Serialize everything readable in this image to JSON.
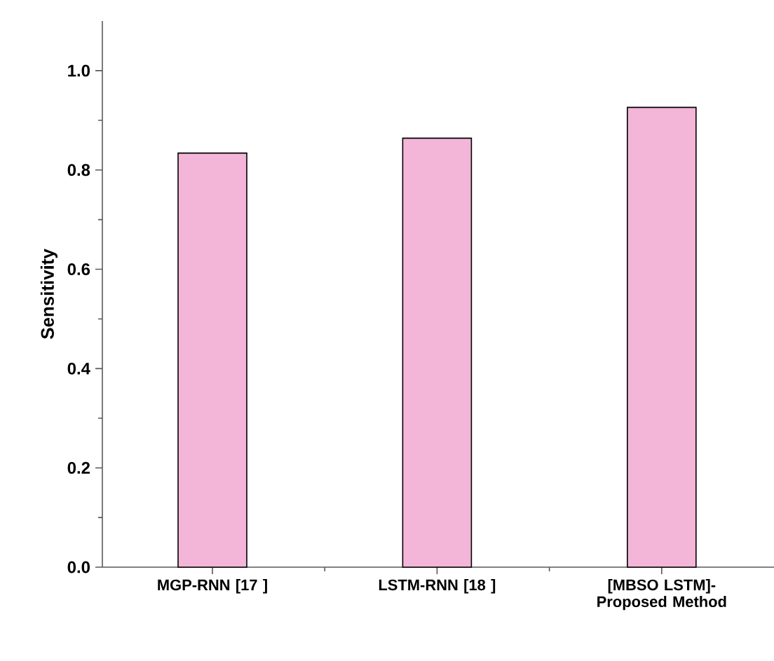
{
  "chart_data": {
    "type": "bar",
    "ylabel": "Sensitivity",
    "categories": [
      "MGP-RNN [17 ]",
      "LSTM-RNN [18 ]",
      "[MBSO LSTM]-Proposed Method"
    ],
    "values": [
      0.834,
      0.864,
      0.926
    ],
    "color": "#f3b6d8",
    "ylim": [
      0,
      1.1
    ],
    "yticks": [
      {
        "value": 0,
        "label": "0.0"
      },
      {
        "value": 0.2,
        "label": "0.2"
      },
      {
        "value": 0.4,
        "label": "0.4"
      },
      {
        "value": 0.6,
        "label": "0.6"
      },
      {
        "value": 0.8,
        "label": "0.8"
      },
      {
        "value": 1.0,
        "label": "1.0"
      }
    ],
    "grid": false
  }
}
